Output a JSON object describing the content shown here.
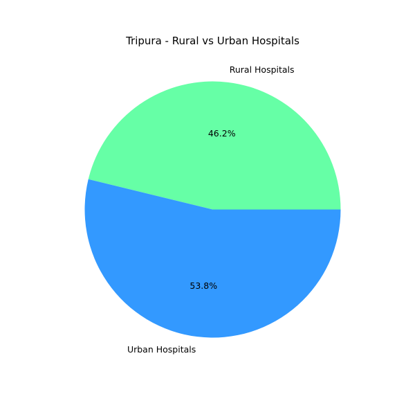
{
  "chart_data": {
    "type": "pie",
    "title": "Tripura - Rural vs Urban Hospitals",
    "categories": [
      "Rural Hospitals",
      "Urban Hospitals"
    ],
    "values": [
      46.2,
      53.8
    ],
    "value_labels": [
      "46.2%",
      "53.8%"
    ],
    "colors": [
      "#66ffa6",
      "#3399ff"
    ],
    "start_angle_deg": 0,
    "direction": "counterclockwise",
    "legend": "none"
  }
}
